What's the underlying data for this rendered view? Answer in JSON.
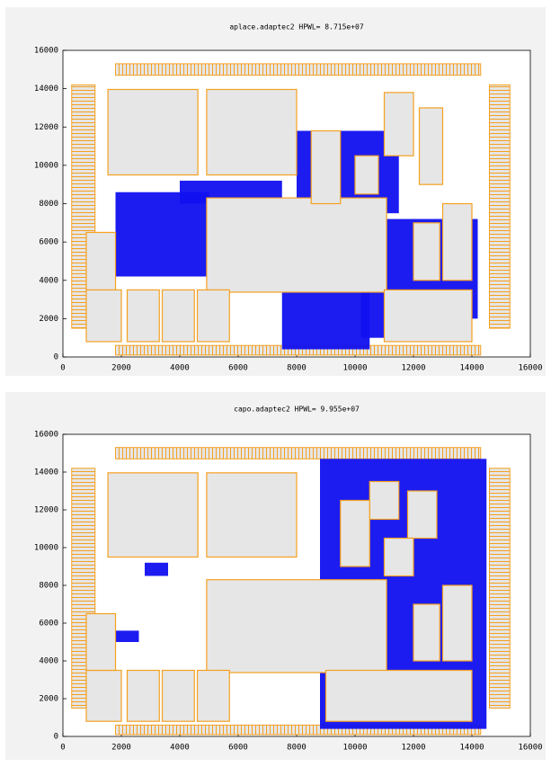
{
  "chart_data": [
    {
      "type": "placement",
      "title": "aplace.adaptec2 HPWL= 8.715e+07",
      "xlim": [
        0,
        16000
      ],
      "ylim": [
        0,
        16000
      ],
      "xticks": [
        0,
        2000,
        4000,
        6000,
        8000,
        10000,
        12000,
        14000,
        16000
      ],
      "yticks": [
        0,
        2000,
        4000,
        6000,
        8000,
        10000,
        12000,
        14000,
        16000
      ],
      "macro_color": "#f5a020",
      "cell_color": "#1010f0",
      "pads": [
        [
          300,
          1500,
          1100,
          14200
        ],
        [
          14600,
          1500,
          15300,
          14200
        ],
        [
          1800,
          14700,
          14300,
          15300
        ],
        [
          1800,
          100,
          14300,
          600
        ]
      ],
      "cells": [
        [
          1800,
          4200,
          5000,
          8600
        ],
        [
          4000,
          8000,
          7500,
          9200
        ],
        [
          7500,
          400,
          10500,
          4500
        ],
        [
          8000,
          7500,
          11500,
          11800
        ],
        [
          11000,
          2000,
          14200,
          7200
        ],
        [
          10200,
          1000,
          12000,
          3500
        ]
      ],
      "macros": [
        [
          1540,
          9500,
          4620,
          13960
        ],
        [
          4920,
          9500,
          8000,
          13960
        ],
        [
          4920,
          3380,
          11080,
          8300
        ],
        [
          800,
          800,
          2000,
          3500
        ],
        [
          2200,
          800,
          3300,
          3500
        ],
        [
          3400,
          800,
          4500,
          3500
        ],
        [
          4600,
          800,
          5700,
          3500
        ],
        [
          800,
          3500,
          1800,
          6500
        ],
        [
          11000,
          10500,
          12000,
          13800
        ],
        [
          12200,
          9000,
          13000,
          13000
        ],
        [
          13000,
          4000,
          14000,
          8000
        ],
        [
          12000,
          4000,
          12900,
          7000
        ],
        [
          11000,
          800,
          14000,
          3500
        ],
        [
          8500,
          8000,
          9500,
          11800
        ],
        [
          10000,
          8500,
          10800,
          10500
        ]
      ]
    },
    {
      "type": "placement",
      "title": "capo.adaptec2 HPWL= 9.955e+07",
      "xlim": [
        0,
        16000
      ],
      "ylim": [
        0,
        16000
      ],
      "xticks": [
        0,
        2000,
        4000,
        6000,
        8000,
        10000,
        12000,
        14000,
        16000
      ],
      "yticks": [
        0,
        2000,
        4000,
        6000,
        8000,
        10000,
        12000,
        14000,
        16000
      ],
      "macro_color": "#f5a020",
      "cell_color": "#1010f0",
      "pads": [
        [
          300,
          1500,
          1100,
          14200
        ],
        [
          14600,
          1500,
          15300,
          14200
        ],
        [
          1800,
          14700,
          14300,
          15300
        ],
        [
          1800,
          100,
          14300,
          600
        ]
      ],
      "cells": [
        [
          8800,
          400,
          14500,
          14700
        ],
        [
          2800,
          8500,
          3600,
          9200
        ],
        [
          1800,
          5000,
          2600,
          5600
        ]
      ],
      "macros": [
        [
          1540,
          9500,
          4620,
          13960
        ],
        [
          4920,
          9500,
          8000,
          13960
        ],
        [
          4920,
          3380,
          11080,
          8300
        ],
        [
          800,
          800,
          2000,
          3500
        ],
        [
          2200,
          800,
          3300,
          3500
        ],
        [
          3400,
          800,
          4500,
          3500
        ],
        [
          4600,
          800,
          5700,
          3500
        ],
        [
          800,
          3500,
          1800,
          6500
        ],
        [
          10500,
          11500,
          11500,
          13500
        ],
        [
          11800,
          10500,
          12800,
          13000
        ],
        [
          13000,
          4000,
          14000,
          8000
        ],
        [
          12000,
          4000,
          12900,
          7000
        ],
        [
          9000,
          800,
          14000,
          3500
        ],
        [
          9500,
          9000,
          10500,
          12500
        ],
        [
          11000,
          8500,
          12000,
          10500
        ]
      ]
    }
  ]
}
